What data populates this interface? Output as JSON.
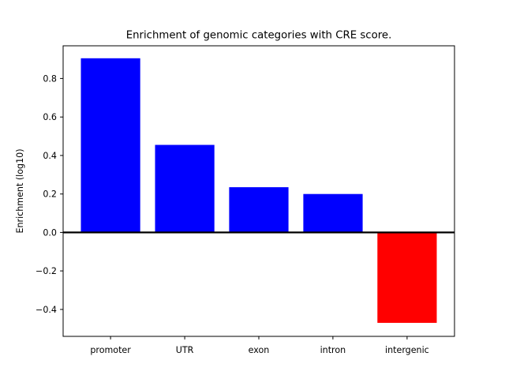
{
  "figure": {
    "background_color": "#ffffff"
  },
  "chart_data": {
    "type": "bar",
    "title": "Enrichment of genomic categories with CRE score.",
    "xlabel": "",
    "ylabel": "Enrichment (log10)",
    "categories": [
      "promoter",
      "UTR",
      "exon",
      "intron",
      "intergenic"
    ],
    "values": [
      0.905,
      0.455,
      0.235,
      0.2,
      -0.47
    ],
    "bar_colors": [
      "#0000ff",
      "#0000ff",
      "#0000ff",
      "#0000ff",
      "#ff0000"
    ],
    "positive_color": "#0000ff",
    "negative_color": "#ff0000",
    "bar_width": 0.8,
    "yticks": [
      0.8,
      0.6,
      0.4,
      0.2,
      0.0,
      -0.2,
      -0.4
    ],
    "ytick_labels": [
      "0.8",
      "0.6",
      "0.4",
      "0.2",
      "0.0",
      "−0.2",
      "−0.4"
    ],
    "ylim": [
      -0.54,
      0.97
    ],
    "xlim": [
      -0.64,
      4.64
    ],
    "zero_line": true,
    "zero_line_color": "#000000",
    "frame_color": "#000000",
    "grid": false,
    "legend": "none"
  }
}
